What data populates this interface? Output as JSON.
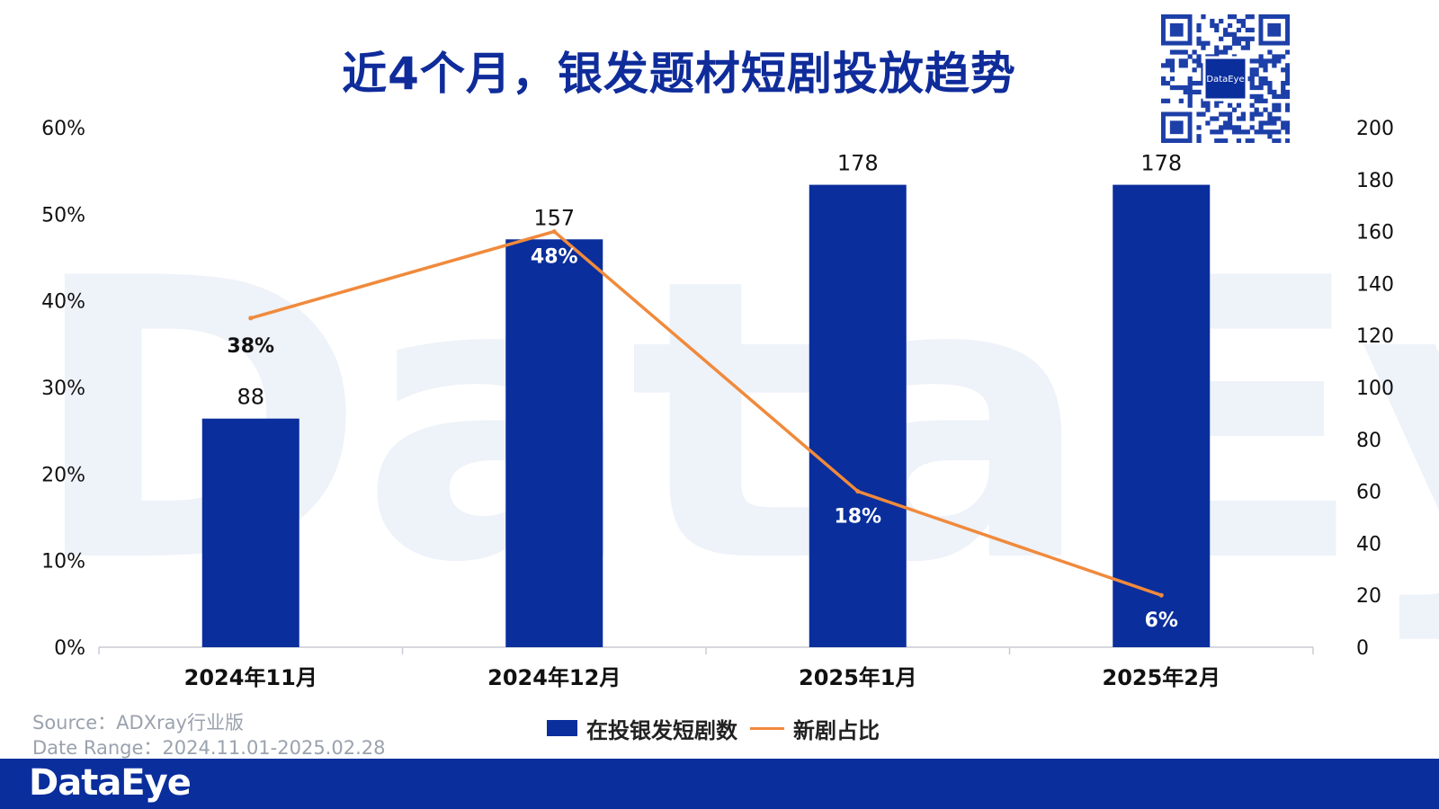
{
  "title": "近4个月，银发题材短剧投放趋势",
  "watermark_text": "DataEye",
  "qr_label": "DataEye",
  "colors": {
    "bar": "#0A2E9C",
    "line": "#F08A3C",
    "title": "#0F2C9A",
    "footer": "#0A2E9C"
  },
  "chart_data": {
    "type": "bar",
    "categories": [
      "2024年11月",
      "2024年12月",
      "2025年1月",
      "2025年2月"
    ],
    "series": [
      {
        "name": "在投银发短剧数",
        "type": "bar",
        "axis": "right",
        "values": [
          88,
          157,
          178,
          178
        ]
      },
      {
        "name": "新剧占比",
        "type": "line",
        "axis": "left",
        "values": [
          0.38,
          0.48,
          0.18,
          0.06
        ]
      }
    ],
    "value_labels": [
      "88",
      "157",
      "178",
      "178"
    ],
    "percent_labels": [
      "38%",
      "48%",
      "18%",
      "6%"
    ],
    "left_axis": {
      "ylim": [
        0,
        0.6
      ],
      "ticks": [
        "0%",
        "10%",
        "20%",
        "30%",
        "40%",
        "50%",
        "60%"
      ]
    },
    "right_axis": {
      "ylim": [
        0,
        200
      ],
      "ticks": [
        "0",
        "20",
        "40",
        "60",
        "80",
        "100",
        "120",
        "140",
        "160",
        "180",
        "200"
      ]
    },
    "legend_position": "bottom-center",
    "grid": false
  },
  "legend": {
    "bar_label": "在投银发短剧数",
    "line_label": "新剧占比"
  },
  "source": {
    "line1": "Source：ADXray行业版",
    "line2": "Date Range：2024.11.01-2025.02.28"
  },
  "footer": {
    "brand": "DataEye"
  }
}
